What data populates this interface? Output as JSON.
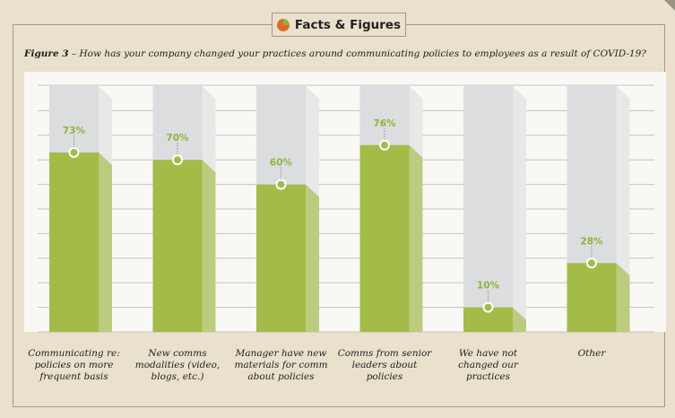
{
  "header": {
    "badge": "Facts & Figures",
    "badge_icon": "pie-chart-icon"
  },
  "caption": {
    "figure": "Figure 3",
    "text": " – How has your company changed your practices around communicating policies to employees as a result of COVID-19?"
  },
  "chart_data": {
    "type": "bar",
    "title": "How has your company changed your practices around communicating policies to employees as a result of COVID-19?",
    "categories": [
      "Communicating re: policies on more frequent basis",
      "New comms modalities (video, blogs, etc.)",
      "Manager have new materials for comm about policies",
      "Comms from senior leaders about policies",
      "We have not changed our practices",
      "Other"
    ],
    "values": [
      73,
      70,
      60,
      76,
      10,
      28
    ],
    "value_labels": [
      "73%",
      "70%",
      "60%",
      "76%",
      "10%",
      "28%"
    ],
    "ylim": [
      0,
      100
    ],
    "grid": true,
    "unit": "%",
    "colors": {
      "bar": "#a3bb47",
      "bar_side": "#bccc7f",
      "track": "#dcdddf",
      "track_side": "#e8e8e9",
      "label": "#8fb43c"
    }
  }
}
